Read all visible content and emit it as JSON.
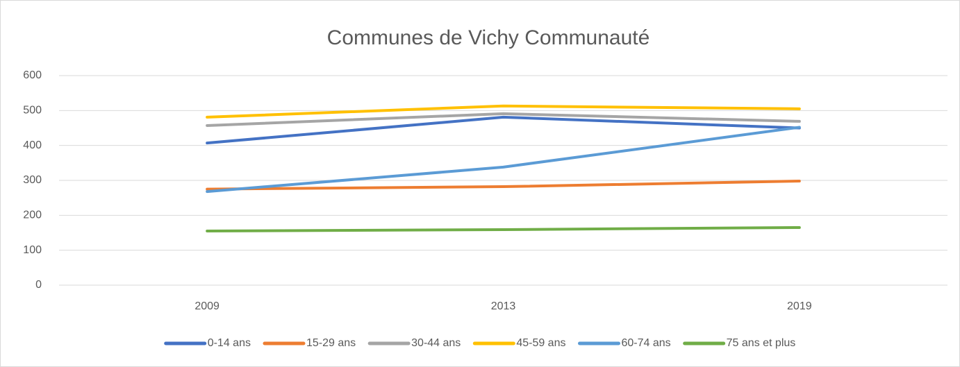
{
  "chart_data": {
    "type": "line",
    "title": "Communes de Vichy Communauté",
    "categories": [
      "2009",
      "2013",
      "2019"
    ],
    "series": [
      {
        "name": "0-14 ans",
        "color": "#4472c4",
        "values": [
          407,
          481,
          450
        ]
      },
      {
        "name": "15-29 ans",
        "color": "#ed7d31",
        "values": [
          275,
          282,
          298
        ]
      },
      {
        "name": "30-44 ans",
        "color": "#a5a5a5",
        "values": [
          457,
          491,
          469
        ]
      },
      {
        "name": "45-59 ans",
        "color": "#ffc000",
        "values": [
          481,
          513,
          505
        ]
      },
      {
        "name": "60-74 ans",
        "color": "#5b9bd5",
        "values": [
          268,
          338,
          452
        ]
      },
      {
        "name": "75 ans et plus",
        "color": "#70ad47",
        "values": [
          155,
          159,
          165
        ]
      }
    ],
    "ylim": [
      0,
      600
    ],
    "yticks": [
      0,
      100,
      200,
      300,
      400,
      500,
      600
    ],
    "grid": true,
    "legend": "bottom"
  }
}
